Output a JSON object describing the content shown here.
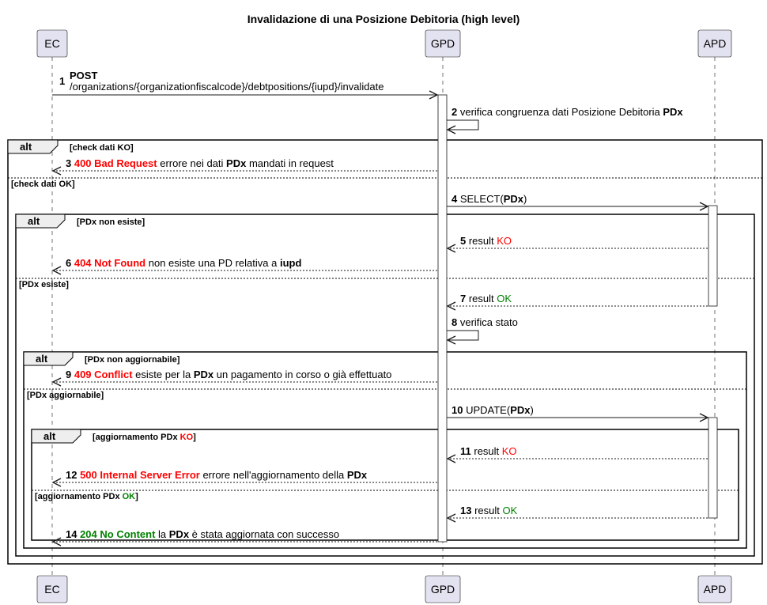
{
  "title": "Invalidazione di una Posizione Debitoria (high level)",
  "colors": {
    "participant_fill": "#e2e2f0",
    "red": "#ff0000",
    "green": "#008000",
    "frame_tab": "#eeeeee"
  },
  "participants": [
    {
      "id": "EC",
      "label": "EC"
    },
    {
      "id": "GPD",
      "label": "GPD"
    },
    {
      "id": "APD",
      "label": "APD"
    }
  ],
  "messages": [
    {
      "num": "1",
      "from": "EC",
      "to": "GPD",
      "type": "sync",
      "lines": [
        [
          {
            "t": "POST",
            "b": true
          }
        ],
        [
          {
            "t": "/organizations/{organizationfiscalcode}/debtpositions/{iupd}/invalidate"
          }
        ]
      ]
    },
    {
      "num": "2",
      "from": "GPD",
      "to": "GPD",
      "type": "self",
      "lines": [
        [
          {
            "t": "verifica congruenza dati Posizione Debitoria "
          },
          {
            "t": "PDx",
            "b": true
          }
        ]
      ]
    },
    {
      "num": "3",
      "from": "GPD",
      "to": "EC",
      "type": "return",
      "lines": [
        [
          {
            "t": "400 Bad Request",
            "b": true,
            "c": "red"
          },
          {
            "t": " errore nei dati "
          },
          {
            "t": "PDx",
            "b": true
          },
          {
            "t": " mandati in request"
          }
        ]
      ]
    },
    {
      "num": "4",
      "from": "GPD",
      "to": "APD",
      "type": "sync",
      "lines": [
        [
          {
            "t": "SELECT("
          },
          {
            "t": "PDx",
            "b": true
          },
          {
            "t": ")"
          }
        ]
      ]
    },
    {
      "num": "5",
      "from": "APD",
      "to": "GPD",
      "type": "return",
      "lines": [
        [
          {
            "t": "result "
          },
          {
            "t": "KO",
            "c": "red"
          }
        ]
      ]
    },
    {
      "num": "6",
      "from": "GPD",
      "to": "EC",
      "type": "return",
      "lines": [
        [
          {
            "t": "404 Not Found",
            "b": true,
            "c": "red"
          },
          {
            "t": " non esiste una PD relativa a "
          },
          {
            "t": "iupd",
            "b": true
          }
        ]
      ]
    },
    {
      "num": "7",
      "from": "APD",
      "to": "GPD",
      "type": "return",
      "lines": [
        [
          {
            "t": "result "
          },
          {
            "t": "OK",
            "c": "green"
          }
        ]
      ]
    },
    {
      "num": "8",
      "from": "GPD",
      "to": "GPD",
      "type": "self",
      "lines": [
        [
          {
            "t": "verifica stato"
          }
        ]
      ]
    },
    {
      "num": "9",
      "from": "GPD",
      "to": "EC",
      "type": "return",
      "lines": [
        [
          {
            "t": "409 Conflict",
            "b": true,
            "c": "red"
          },
          {
            "t": " esiste per la "
          },
          {
            "t": "PDx",
            "b": true
          },
          {
            "t": " un pagamento in corso o già effettuato"
          }
        ]
      ]
    },
    {
      "num": "10",
      "from": "GPD",
      "to": "APD",
      "type": "sync",
      "lines": [
        [
          {
            "t": "UPDATE("
          },
          {
            "t": "PDx",
            "b": true
          },
          {
            "t": ")"
          }
        ]
      ]
    },
    {
      "num": "11",
      "from": "APD",
      "to": "GPD",
      "type": "return",
      "lines": [
        [
          {
            "t": "result "
          },
          {
            "t": "KO",
            "c": "red"
          }
        ]
      ]
    },
    {
      "num": "12",
      "from": "GPD",
      "to": "EC",
      "type": "return",
      "lines": [
        [
          {
            "t": "500 Internal Server Error",
            "b": true,
            "c": "red"
          },
          {
            "t": " errore nell'aggiornamento della "
          },
          {
            "t": "PDx",
            "b": true
          }
        ]
      ]
    },
    {
      "num": "13",
      "from": "APD",
      "to": "GPD",
      "type": "return",
      "lines": [
        [
          {
            "t": "result "
          },
          {
            "t": "OK",
            "c": "green"
          }
        ]
      ]
    },
    {
      "num": "14",
      "from": "GPD",
      "to": "EC",
      "type": "return",
      "lines": [
        [
          {
            "t": "204 No Content",
            "b": true,
            "c": "green"
          },
          {
            "t": " la "
          },
          {
            "t": "PDx",
            "b": true
          },
          {
            "t": " è stata aggiornata con successo"
          }
        ]
      ]
    }
  ],
  "frames": [
    {
      "kind": "alt",
      "conditions": [
        [
          {
            "t": "[check dati KO]"
          }
        ],
        [
          {
            "t": "[check dati OK]"
          }
        ]
      ]
    },
    {
      "kind": "alt",
      "conditions": [
        [
          {
            "t": "[PDx non esiste]"
          }
        ],
        [
          {
            "t": "[PDx esiste]"
          }
        ]
      ]
    },
    {
      "kind": "alt",
      "conditions": [
        [
          {
            "t": "[PDx non aggiornabile]"
          }
        ],
        [
          {
            "t": "[PDx aggiornabile]"
          }
        ]
      ]
    },
    {
      "kind": "alt",
      "conditions": [
        [
          {
            "t": "[aggiornamento PDx "
          },
          {
            "t": "KO",
            "c": "red"
          },
          {
            "t": "]"
          }
        ],
        [
          {
            "t": "[aggiornamento PDx "
          },
          {
            "t": "OK",
            "c": "green"
          },
          {
            "t": "]"
          }
        ]
      ]
    }
  ]
}
